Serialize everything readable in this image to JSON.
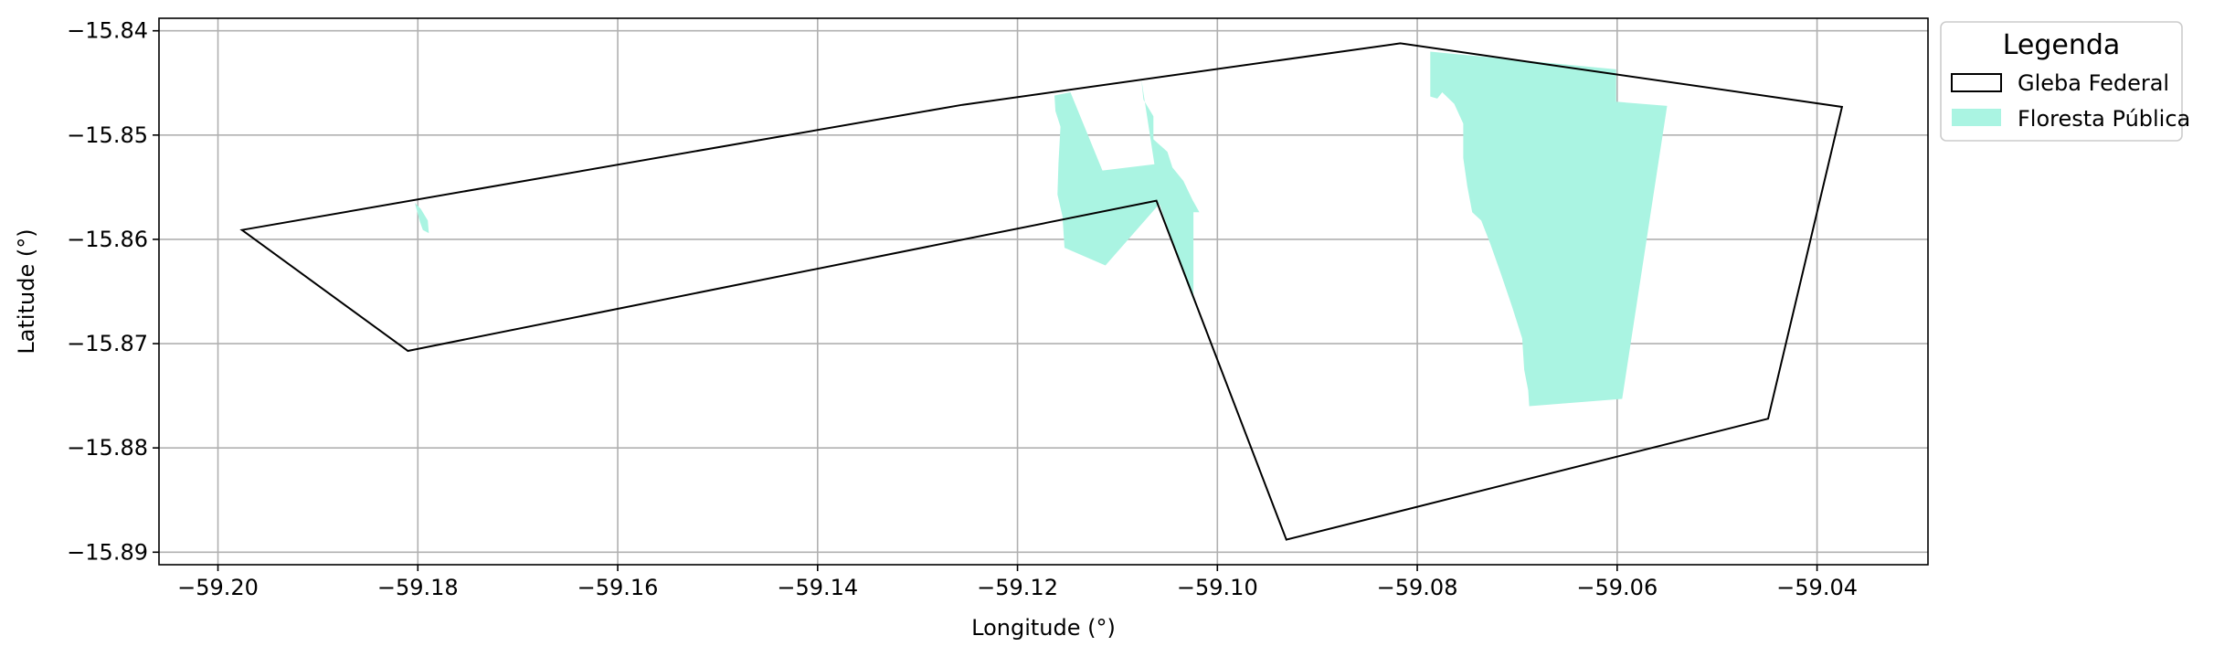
{
  "chart_data": {
    "type": "map",
    "xlabel": "Longitude (°)",
    "ylabel": "Latitude (°)",
    "xlim": [
      -59.2059,
      -59.0289
    ],
    "ylim": [
      -15.8912,
      -15.8388
    ],
    "xticks": [
      -59.2,
      -59.18,
      -59.16,
      -59.14,
      -59.12,
      -59.1,
      -59.08,
      -59.06,
      -59.04
    ],
    "yticks": [
      -15.84,
      -15.85,
      -15.86,
      -15.87,
      -15.88,
      -15.89
    ],
    "xtick_labels": [
      "−59.20",
      "−59.18",
      "−59.16",
      "−59.14",
      "−59.12",
      "−59.10",
      "−59.08",
      "−59.06",
      "−59.04"
    ],
    "ytick_labels": [
      "−15.84",
      "−15.85",
      "−15.86",
      "−15.87",
      "−15.88",
      "−15.89"
    ],
    "grid": true,
    "legend": {
      "title": "Legenda",
      "placement": "outside-top-right",
      "entries": [
        {
          "label": "Gleba Federal",
          "style": "outline",
          "edge_color": "#000000",
          "fill_color": "none"
        },
        {
          "label": "Floresta Pública",
          "style": "filled",
          "edge_color": "none",
          "fill_color": "#aaf4e2"
        }
      ]
    },
    "layers": [
      {
        "name": "Gleba Federal",
        "kind": "polygon-outline",
        "color": "#000000",
        "polygons": [
          [
            [
              -59.1976,
              -15.8591
            ],
            [
              -59.1255,
              -15.8471
            ],
            [
              -59.0817,
              -15.8412
            ],
            [
              -59.0375,
              -15.8473
            ],
            [
              -59.0449,
              -15.8772
            ],
            [
              -59.0931,
              -15.8888
            ],
            [
              -59.1061,
              -15.8563
            ],
            [
              -59.181,
              -15.8707
            ],
            [
              -59.1976,
              -15.8591
            ]
          ]
        ]
      },
      {
        "name": "Floresta Pública",
        "kind": "polygon-fill",
        "color": "#aaf4e2",
        "polygons": [
          [
            [
              -59.0787,
              -15.842
            ],
            [
              -59.0601,
              -15.8437
            ],
            [
              -59.0601,
              -15.8468
            ],
            [
              -59.055,
              -15.8472
            ],
            [
              -59.0595,
              -15.8753
            ],
            [
              -59.0688,
              -15.876
            ],
            [
              -59.0689,
              -15.8745
            ],
            [
              -59.0693,
              -15.8725
            ],
            [
              -59.0695,
              -15.8695
            ],
            [
              -59.0705,
              -15.8665
            ],
            [
              -59.0716,
              -15.8634
            ],
            [
              -59.0727,
              -15.8604
            ],
            [
              -59.0736,
              -15.8582
            ],
            [
              -59.0745,
              -15.8574
            ],
            [
              -59.075,
              -15.8549
            ],
            [
              -59.0754,
              -15.8522
            ],
            [
              -59.0754,
              -15.8489
            ],
            [
              -59.0763,
              -15.847
            ],
            [
              -59.0775,
              -15.8459
            ],
            [
              -59.078,
              -15.8465
            ],
            [
              -59.0787,
              -15.8463
            ]
          ],
          [
            [
              -59.1163,
              -15.8462
            ],
            [
              -59.1162,
              -15.8477
            ],
            [
              -59.1157,
              -15.8492
            ],
            [
              -59.1159,
              -15.8527
            ],
            [
              -59.116,
              -15.8557
            ],
            [
              -59.1155,
              -15.8578
            ],
            [
              -59.1153,
              -15.8608
            ],
            [
              -59.1112,
              -15.8625
            ],
            [
              -59.1058,
              -15.8566
            ],
            [
              -59.1034,
              -15.8633
            ],
            [
              -59.1024,
              -15.8658
            ],
            [
              -59.1024,
              -15.8574
            ],
            [
              -59.1018,
              -15.8574
            ],
            [
              -59.1025,
              -15.8562
            ],
            [
              -59.1034,
              -15.8544
            ],
            [
              -59.1045,
              -15.8531
            ],
            [
              -59.105,
              -15.8516
            ],
            [
              -59.1064,
              -15.8504
            ],
            [
              -59.1064,
              -15.8482
            ],
            [
              -59.1074,
              -15.8466
            ],
            [
              -59.1076,
              -15.8447
            ],
            [
              -59.1063,
              -15.8528
            ],
            [
              -59.1115,
              -15.8534
            ],
            [
              -59.1147,
              -15.8459
            ]
          ],
          [
            [
              -59.1803,
              -15.8565
            ],
            [
              -59.1798,
              -15.8583
            ],
            [
              -59.1795,
              -15.8591
            ],
            [
              -59.1789,
              -15.8594
            ],
            [
              -59.179,
              -15.8582
            ],
            [
              -59.1797,
              -15.8571
            ]
          ]
        ]
      }
    ]
  }
}
